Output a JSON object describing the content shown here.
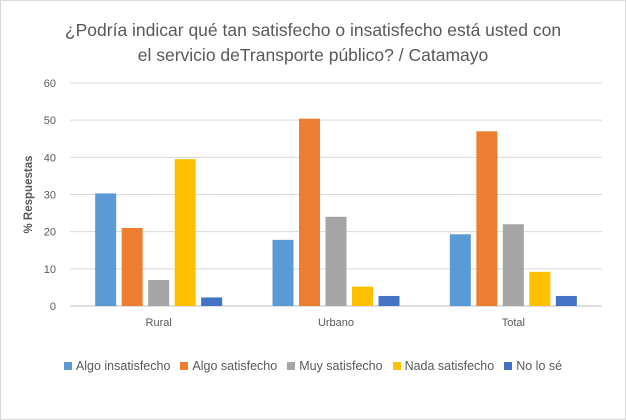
{
  "chart_data": {
    "type": "bar",
    "title_line1": "¿Podría indicar qué tan satisfecho o insatisfecho está usted con",
    "title_line2": "el servicio deTransporte público? / Catamayo",
    "ylabel": "% Respuestas",
    "xlabel": "",
    "ylim": [
      0,
      60
    ],
    "yticks": [
      0,
      10,
      20,
      30,
      40,
      50,
      60
    ],
    "grid": true,
    "legend_position": "bottom",
    "categories": [
      "Rural",
      "Urbano",
      "Total"
    ],
    "series": [
      {
        "name": "Algo insatisfecho",
        "color": "#5b9bd5",
        "values": [
          30.3,
          17.8,
          19.3
        ]
      },
      {
        "name": "Algo satisfecho",
        "color": "#ed7d31",
        "values": [
          21.0,
          50.4,
          47.0
        ]
      },
      {
        "name": "Muy satisfecho",
        "color": "#a5a5a5",
        "values": [
          7.0,
          24.0,
          22.0
        ]
      },
      {
        "name": "Nada satisfecho",
        "color": "#ffc000",
        "values": [
          39.5,
          5.2,
          9.2
        ]
      },
      {
        "name": "No lo sé",
        "color": "#4472c4",
        "values": [
          2.3,
          2.7,
          2.7
        ]
      }
    ]
  }
}
